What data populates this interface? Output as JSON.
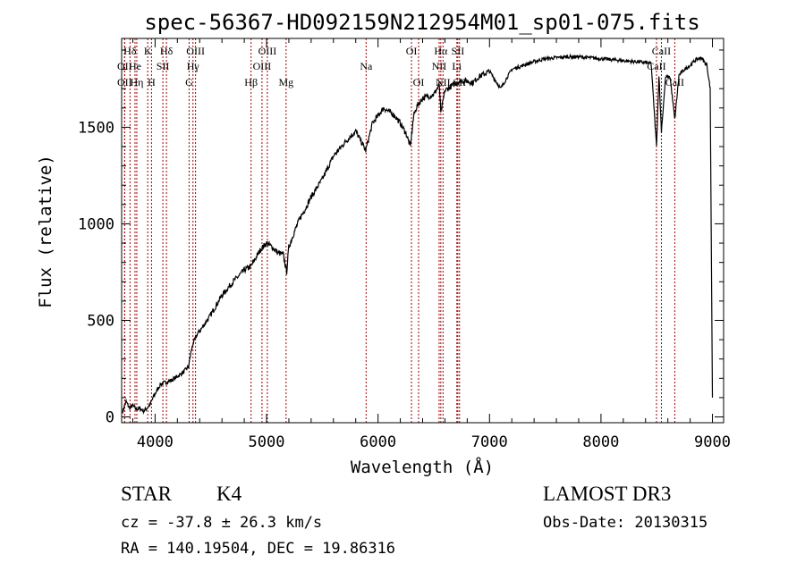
{
  "chart_data": {
    "type": "line",
    "title": "spec-56367-HD092159N212954M01_sp01-075.fits",
    "xlabel": "Wavelength (Å)",
    "ylabel": "Flux (relative)",
    "xlim": [
      3700,
      9100
    ],
    "ylim": [
      -30,
      1960
    ],
    "xticks": [
      "4000",
      "5000",
      "6000",
      "7000",
      "8000",
      "9000"
    ],
    "xtick_values": [
      4000,
      5000,
      6000,
      7000,
      8000,
      9000
    ],
    "yticks": [
      "0",
      "500",
      "1000",
      "1500"
    ],
    "ytick_values": [
      0,
      500,
      1000,
      1500
    ],
    "series": [
      {
        "name": "flux",
        "x": [
          3710,
          3740,
          3770,
          3800,
          3830,
          3860,
          3900,
          3950,
          4000,
          4050,
          4100,
          4150,
          4200,
          4250,
          4300,
          4320,
          4340,
          4380,
          4420,
          4500,
          4600,
          4700,
          4800,
          4860,
          4900,
          4950,
          5000,
          5050,
          5100,
          5150,
          5180,
          5200,
          5250,
          5300,
          5350,
          5400,
          5500,
          5600,
          5700,
          5800,
          5890,
          5950,
          6000,
          6050,
          6100,
          6150,
          6200,
          6250,
          6290,
          6320,
          6350,
          6400,
          6500,
          6550,
          6563,
          6600,
          6650,
          6700,
          6750,
          6800,
          6850,
          6900,
          7000,
          7100,
          7200,
          7300,
          7400,
          7500,
          7600,
          7700,
          7800,
          7900,
          8000,
          8100,
          8200,
          8300,
          8400,
          8450,
          8498,
          8520,
          8542,
          8580,
          8620,
          8662,
          8700,
          8750,
          8800,
          8850,
          8900,
          8950,
          8980,
          9000
        ],
        "values": [
          30,
          80,
          45,
          60,
          40,
          45,
          30,
          60,
          120,
          170,
          180,
          190,
          210,
          230,
          260,
          330,
          380,
          430,
          460,
          530,
          630,
          700,
          760,
          780,
          820,
          870,
          900,
          880,
          850,
          840,
          750,
          880,
          960,
          1030,
          1080,
          1140,
          1230,
          1350,
          1420,
          1480,
          1380,
          1520,
          1560,
          1600,
          1580,
          1560,
          1520,
          1470,
          1400,
          1560,
          1610,
          1650,
          1670,
          1720,
          1570,
          1690,
          1710,
          1730,
          1740,
          1740,
          1730,
          1760,
          1790,
          1700,
          1800,
          1820,
          1840,
          1855,
          1860,
          1865,
          1865,
          1860,
          1855,
          1850,
          1845,
          1840,
          1835,
          1830,
          1400,
          1770,
          1480,
          1760,
          1760,
          1540,
          1770,
          1800,
          1820,
          1850,
          1860,
          1820,
          1700,
          100
        ]
      }
    ],
    "lines": [
      {
        "label": "Hδ",
        "x": 3775,
        "row": 1
      },
      {
        "label": "OII",
        "x": 3727,
        "row": 2
      },
      {
        "label": "OII",
        "x": 3727,
        "row": 3
      },
      {
        "label": "K",
        "x": 3934,
        "row": 1
      },
      {
        "label": "He",
        "x": 3820,
        "row": 2
      },
      {
        "label": "Hη",
        "x": 3836,
        "row": 3
      },
      {
        "label": "Hδ",
        "x": 4102,
        "row": 1
      },
      {
        "label": "SII",
        "x": 4070,
        "row": 2
      },
      {
        "label": "H",
        "x": 3968,
        "row": 3
      },
      {
        "label": "OIII",
        "x": 4363,
        "row": 1
      },
      {
        "label": "Hγ",
        "x": 4340,
        "row": 2
      },
      {
        "label": "G",
        "x": 4305,
        "row": 3
      },
      {
        "label": "OIII",
        "x": 5007,
        "row": 1
      },
      {
        "label": "OIII",
        "x": 4959,
        "row": 2
      },
      {
        "label": "Hβ",
        "x": 4861,
        "row": 3
      },
      {
        "label": "Mg",
        "x": 5175,
        "row": 3
      },
      {
        "label": "Na",
        "x": 5893,
        "row": 2
      },
      {
        "label": "OI",
        "x": 6300,
        "row": 1
      },
      {
        "label": "OI",
        "x": 6364,
        "row": 3
      },
      {
        "label": "Hα",
        "x": 6563,
        "row": 1
      },
      {
        "label": "SII",
        "x": 6716,
        "row": 1
      },
      {
        "label": "NII",
        "x": 6548,
        "row": 2
      },
      {
        "label": "Li",
        "x": 6707,
        "row": 2
      },
      {
        "label": "NII",
        "x": 6583,
        "row": 3
      },
      {
        "label": "SII",
        "x": 6731,
        "row": 3
      },
      {
        "label": "CaII",
        "x": 8542,
        "row": 1
      },
      {
        "label": "CaII",
        "x": 8498,
        "row": 2
      },
      {
        "label": "CaII",
        "x": 8662,
        "row": 3
      }
    ]
  },
  "info": {
    "class_label": "STAR",
    "subclass": "K4",
    "survey": "LAMOST DR3",
    "cz": "cz = -37.8 ± 26.3 km/s",
    "obs_date": "Obs-Date: 20130315",
    "coords": "RA = 140.19504, DEC =  19.86316"
  },
  "colors": {
    "axis": "#000000",
    "spectrum": "#000000",
    "line_marker": "#a00000"
  }
}
